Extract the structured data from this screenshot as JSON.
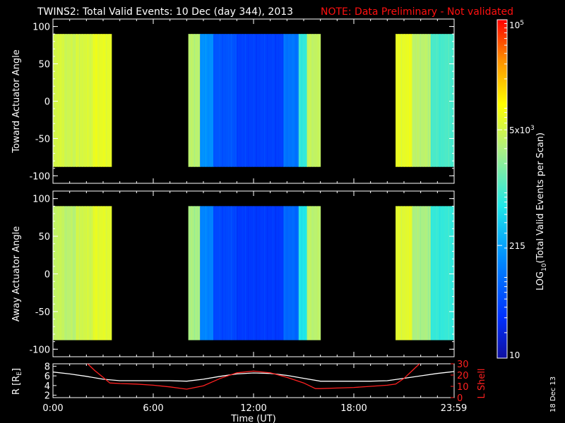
{
  "header": {
    "title": "TWINS2: Total Valid Events: 10 Dec (day 344), 2013",
    "note": "NOTE: Data Preliminary - Not validated",
    "note_color": "#ff1010"
  },
  "stamp": "18 Dec 13",
  "chart_data": [
    {
      "type": "heatmap",
      "panel": "top",
      "ylabel": "Toward Actuator Angle",
      "ylim": [
        -110,
        110
      ],
      "yticks": [
        100,
        50,
        0,
        -50,
        -100
      ],
      "x_range_hours": [
        0,
        24
      ],
      "angle_range": [
        -88,
        90
      ],
      "coverage_hours": [
        [
          0.0,
          3.5
        ],
        [
          8.1,
          16.0
        ],
        [
          20.5,
          24.0
        ]
      ],
      "segments": [
        {
          "from": 0.0,
          "to": 0.6,
          "log": 3.72
        },
        {
          "from": 0.6,
          "to": 1.4,
          "log": 3.68
        },
        {
          "from": 1.4,
          "to": 2.4,
          "log": 3.74
        },
        {
          "from": 2.4,
          "to": 3.5,
          "log": 3.85
        },
        {
          "from": 8.1,
          "to": 8.8,
          "log": 3.55
        },
        {
          "from": 8.8,
          "to": 9.6,
          "log": 2.2
        },
        {
          "from": 9.6,
          "to": 11.0,
          "log": 1.75
        },
        {
          "from": 11.0,
          "to": 13.8,
          "log": 1.6
        },
        {
          "from": 13.8,
          "to": 14.7,
          "log": 2.0
        },
        {
          "from": 14.7,
          "to": 15.2,
          "log": 2.9
        },
        {
          "from": 15.2,
          "to": 16.0,
          "log": 3.6
        },
        {
          "from": 20.5,
          "to": 21.5,
          "log": 3.85
        },
        {
          "from": 21.5,
          "to": 22.6,
          "log": 3.55
        },
        {
          "from": 22.6,
          "to": 24.0,
          "log": 3.0
        }
      ]
    },
    {
      "type": "heatmap",
      "panel": "bottom",
      "ylabel": "Away Actuator Angle",
      "ylim": [
        -110,
        110
      ],
      "yticks": [
        100,
        50,
        0,
        -50,
        -100
      ],
      "x_range_hours": [
        0,
        24
      ],
      "angle_range": [
        -88,
        90
      ],
      "coverage_hours": [
        [
          0.0,
          3.5
        ],
        [
          8.1,
          16.0
        ],
        [
          20.5,
          24.0
        ]
      ],
      "segments": [
        {
          "from": 0.0,
          "to": 0.6,
          "log": 3.6
        },
        {
          "from": 0.6,
          "to": 1.4,
          "log": 3.55
        },
        {
          "from": 1.4,
          "to": 2.4,
          "log": 3.7
        },
        {
          "from": 2.4,
          "to": 3.5,
          "log": 3.82
        },
        {
          "from": 8.1,
          "to": 8.8,
          "log": 3.45
        },
        {
          "from": 8.8,
          "to": 9.6,
          "log": 2.1
        },
        {
          "from": 9.6,
          "to": 11.0,
          "log": 1.65
        },
        {
          "from": 11.0,
          "to": 13.8,
          "log": 1.55
        },
        {
          "from": 13.8,
          "to": 14.7,
          "log": 1.9
        },
        {
          "from": 14.7,
          "to": 15.2,
          "log": 2.8
        },
        {
          "from": 15.2,
          "to": 16.0,
          "log": 3.55
        },
        {
          "from": 20.5,
          "to": 21.5,
          "log": 3.8
        },
        {
          "from": 21.5,
          "to": 22.6,
          "log": 3.45
        },
        {
          "from": 22.6,
          "to": 24.0,
          "log": 2.9
        }
      ]
    },
    {
      "type": "line",
      "panel": "orbit",
      "ylabel_left": "R [R",
      "ylabel_left_sub": "E",
      "ylabel_right": "L Shell",
      "left_ticks": [
        8,
        6,
        4,
        2
      ],
      "left_range": [
        1.5,
        8.5
      ],
      "right_ticks": [
        30,
        20,
        10,
        0
      ],
      "right_range": [
        0,
        30
      ],
      "xlabel": "Time (UT)",
      "xtick_labels": [
        "0:00",
        "6:00",
        "12:00",
        "18:00",
        "23:59"
      ],
      "xtick_hours": [
        0,
        6,
        12,
        18,
        23.98
      ],
      "series": [
        {
          "color": "#ffffff",
          "axis": "left",
          "x": [
            0,
            1,
            2,
            3,
            4,
            5,
            6,
            7,
            8,
            9,
            10,
            11,
            12,
            13,
            14,
            15,
            16,
            17,
            18,
            19,
            20,
            21,
            22,
            23,
            24
          ],
          "y": [
            6.8,
            6.4,
            5.9,
            5.3,
            5.0,
            5.0,
            5.0,
            5.0,
            4.9,
            5.3,
            5.9,
            6.4,
            6.6,
            6.5,
            6.1,
            5.5,
            4.9,
            4.9,
            4.9,
            4.9,
            5.0,
            5.5,
            6.0,
            6.5,
            6.9
          ]
        },
        {
          "color": "#ff2020",
          "axis": "right",
          "x": [
            2.0,
            2.5,
            3.0,
            3.4,
            4,
            5,
            6,
            7,
            8,
            9,
            10,
            11,
            12,
            13,
            14,
            15,
            15.7,
            16,
            17,
            18,
            19,
            20,
            20.5,
            21,
            21.5,
            22.0
          ],
          "y": [
            31,
            24,
            18,
            13,
            12.5,
            12,
            11,
            9.5,
            7.5,
            10.5,
            17,
            22,
            23.5,
            22,
            18,
            13,
            8,
            8,
            8.5,
            9,
            10,
            11,
            12,
            17,
            24,
            31
          ]
        }
      ]
    }
  ],
  "colorbar": {
    "label": "LOG",
    "label_sub": "10",
    "label_rest": "(Total Valid Events per Scan)",
    "tick_labels": [
      {
        "text": "10",
        "sup": "5",
        "log": 5
      },
      {
        "text": "5x10",
        "sup": "3",
        "log": 3.699
      },
      {
        "text": "215",
        "sup": "",
        "log": 2.332
      },
      {
        "text": "10",
        "sup": "",
        "log": 1
      }
    ],
    "log_range": [
      1,
      5
    ]
  }
}
